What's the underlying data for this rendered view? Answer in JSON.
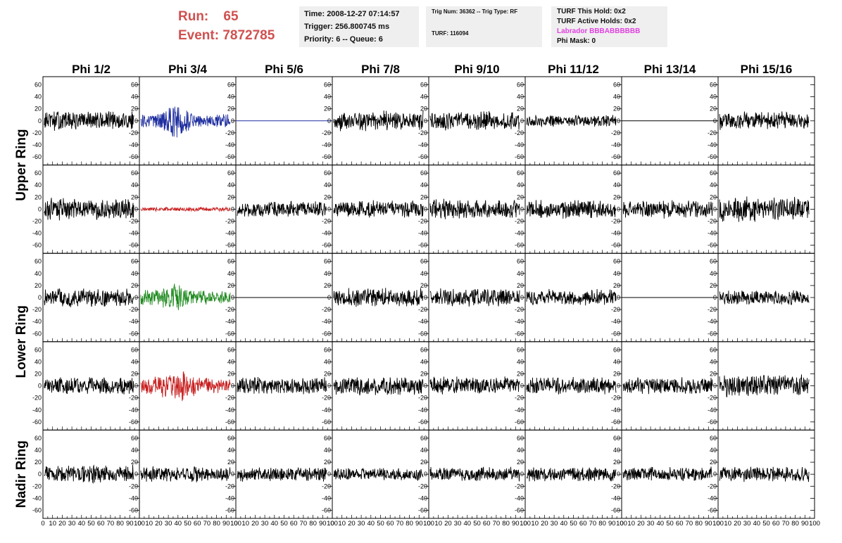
{
  "header": {
    "run_label": "Run:    65",
    "event_label": "Event: 7872785"
  },
  "info_panel_1": {
    "time": "Time: 2008-12-27 07:14:57",
    "trigger": "Trigger: 256.800745 ms",
    "priority": "Priority: 6 -- Queue: 6"
  },
  "info_panel_2": {
    "trig": "Trig Num: 36362 -- Trig Type: RF",
    "turf": "TURF: 116094"
  },
  "info_panel_3": {
    "this_hold": "TURF This Hold: 0x2",
    "active_holds": "TURF Active Holds: 0x2",
    "labrador": "Labrador BBBABBBBBB",
    "phi_mask": "Phi Mask: 0"
  },
  "columns": [
    "Phi 1/2",
    "Phi 3/4",
    "Phi 5/6",
    "Phi 7/8",
    "Phi 9/10",
    "Phi 11/12",
    "Phi 13/14",
    "Phi 15/16"
  ],
  "ring_labels": [
    "Upper Ring",
    "Lower Ring",
    "Nadir Ring"
  ],
  "y_tick_labels": [
    "60",
    "40",
    "20",
    "0",
    "-20",
    "-40",
    "-60"
  ],
  "x_tick_labels": [
    "0",
    "10",
    "20",
    "30",
    "40",
    "50",
    "60",
    "70",
    "80",
    "90",
    "100"
  ],
  "colors": {
    "background": "#ffffff",
    "header_red": "#d05050",
    "info_bg": "#efefef",
    "labrador_magenta": "#e040e0",
    "trace_default": "#000000",
    "trace_blue": "#1f2f9f",
    "trace_red": "#c82020",
    "trace_green": "#1f8a1f"
  },
  "chart_data": {
    "type": "line",
    "x_range": [
      0,
      100
    ],
    "y_range": [
      -70,
      70
    ],
    "rows": 5,
    "cols": 8,
    "panels": [
      {
        "row": 0,
        "col": 0,
        "color": "#000000",
        "amplitude": 18,
        "flat": false
      },
      {
        "row": 0,
        "col": 1,
        "color": "#1f2f9f",
        "amplitude": 34,
        "flat": false
      },
      {
        "row": 0,
        "col": 2,
        "color": "#1f2f9f",
        "amplitude": 0,
        "flat": true
      },
      {
        "row": 0,
        "col": 3,
        "color": "#000000",
        "amplitude": 18,
        "flat": false
      },
      {
        "row": 0,
        "col": 4,
        "color": "#000000",
        "amplitude": 17,
        "flat": false
      },
      {
        "row": 0,
        "col": 5,
        "color": "#000000",
        "amplitude": 11,
        "flat": false
      },
      {
        "row": 0,
        "col": 6,
        "color": "#000000",
        "amplitude": 0,
        "flat": true
      },
      {
        "row": 0,
        "col": 7,
        "color": "#000000",
        "amplitude": 16,
        "flat": false
      },
      {
        "row": 1,
        "col": 0,
        "color": "#000000",
        "amplitude": 20,
        "flat": false
      },
      {
        "row": 1,
        "col": 1,
        "color": "#c82020",
        "amplitude": 4,
        "flat": false
      },
      {
        "row": 1,
        "col": 2,
        "color": "#000000",
        "amplitude": 14,
        "flat": false
      },
      {
        "row": 1,
        "col": 3,
        "color": "#000000",
        "amplitude": 16,
        "flat": false
      },
      {
        "row": 1,
        "col": 4,
        "color": "#000000",
        "amplitude": 18,
        "flat": false
      },
      {
        "row": 1,
        "col": 5,
        "color": "#000000",
        "amplitude": 17,
        "flat": false
      },
      {
        "row": 1,
        "col": 6,
        "color": "#000000",
        "amplitude": 16,
        "flat": false
      },
      {
        "row": 1,
        "col": 7,
        "color": "#000000",
        "amplitude": 22,
        "flat": false
      },
      {
        "row": 2,
        "col": 0,
        "color": "#000000",
        "amplitude": 17,
        "flat": false
      },
      {
        "row": 2,
        "col": 1,
        "color": "#1f8a1f",
        "amplitude": 22,
        "flat": false
      },
      {
        "row": 2,
        "col": 2,
        "color": "#000000",
        "amplitude": 0,
        "flat": true
      },
      {
        "row": 2,
        "col": 3,
        "color": "#000000",
        "amplitude": 17,
        "flat": false
      },
      {
        "row": 2,
        "col": 4,
        "color": "#000000",
        "amplitude": 16,
        "flat": false
      },
      {
        "row": 2,
        "col": 5,
        "color": "#000000",
        "amplitude": 15,
        "flat": false
      },
      {
        "row": 2,
        "col": 6,
        "color": "#000000",
        "amplitude": 0,
        "flat": true
      },
      {
        "row": 2,
        "col": 7,
        "color": "#000000",
        "amplitude": 13,
        "flat": false
      },
      {
        "row": 3,
        "col": 0,
        "color": "#000000",
        "amplitude": 15,
        "flat": false
      },
      {
        "row": 3,
        "col": 1,
        "color": "#c82020",
        "amplitude": 25,
        "flat": false
      },
      {
        "row": 3,
        "col": 2,
        "color": "#000000",
        "amplitude": 16,
        "flat": false
      },
      {
        "row": 3,
        "col": 3,
        "color": "#000000",
        "amplitude": 17,
        "flat": false
      },
      {
        "row": 3,
        "col": 4,
        "color": "#000000",
        "amplitude": 16,
        "flat": false
      },
      {
        "row": 3,
        "col": 5,
        "color": "#000000",
        "amplitude": 16,
        "flat": false
      },
      {
        "row": 3,
        "col": 6,
        "color": "#000000",
        "amplitude": 15,
        "flat": false
      },
      {
        "row": 3,
        "col": 7,
        "color": "#000000",
        "amplitude": 20,
        "flat": false
      },
      {
        "row": 4,
        "col": 0,
        "color": "#000000",
        "amplitude": 16,
        "flat": false
      },
      {
        "row": 4,
        "col": 1,
        "color": "#000000",
        "amplitude": 14,
        "flat": false
      },
      {
        "row": 4,
        "col": 2,
        "color": "#000000",
        "amplitude": 13,
        "flat": false
      },
      {
        "row": 4,
        "col": 3,
        "color": "#000000",
        "amplitude": 12,
        "flat": false
      },
      {
        "row": 4,
        "col": 4,
        "color": "#000000",
        "amplitude": 13,
        "flat": false
      },
      {
        "row": 4,
        "col": 5,
        "color": "#000000",
        "amplitude": 14,
        "flat": false
      },
      {
        "row": 4,
        "col": 6,
        "color": "#000000",
        "amplitude": 13,
        "flat": false
      },
      {
        "row": 4,
        "col": 7,
        "color": "#000000",
        "amplitude": 14,
        "flat": false
      }
    ]
  }
}
